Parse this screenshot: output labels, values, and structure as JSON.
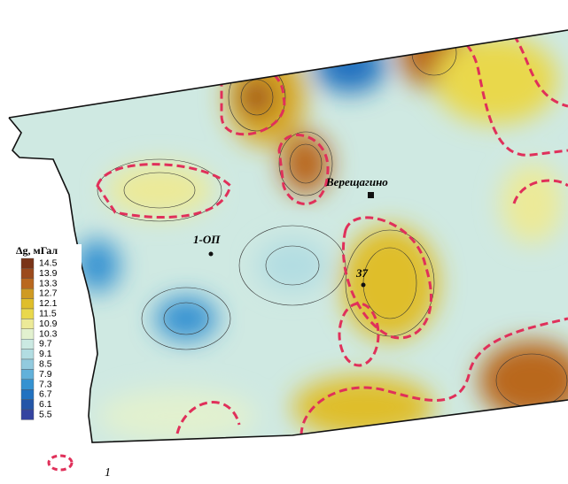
{
  "colorbar": {
    "title": "Δg, мГал",
    "ticks": [
      14.5,
      13.9,
      13.3,
      12.7,
      12.1,
      11.5,
      10.9,
      10.3,
      9.7,
      9.1,
      8.5,
      7.9,
      7.3,
      6.7,
      6.1,
      5.5
    ],
    "colors": [
      "#7a3418",
      "#9c4a1c",
      "#b9681f",
      "#cf9a22",
      "#dfbe2a",
      "#e9d84c",
      "#ecea98",
      "#e2f1cf",
      "#cbe9e2",
      "#b2dde2",
      "#92cade",
      "#62b1da",
      "#3592d1",
      "#2272c0",
      "#2456a8",
      "#3443a0"
    ]
  },
  "places": [
    {
      "label": "Верещагино"
    },
    {
      "label": "1-ОП"
    },
    {
      "label": "37"
    }
  ],
  "legend": {
    "label": "1"
  }
}
